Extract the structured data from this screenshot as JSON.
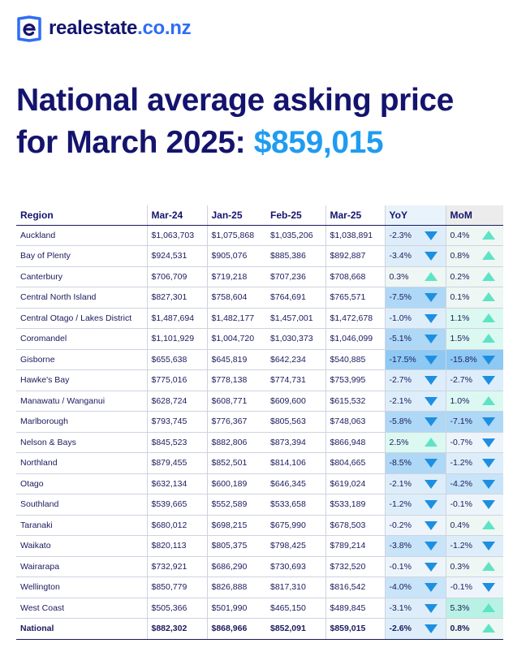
{
  "brand": {
    "name": "realestate",
    "tld": ".co.nz"
  },
  "headline": {
    "line1": "National average asking price",
    "line2_prefix": "for March 2025: ",
    "price": "$859,015"
  },
  "colors": {
    "navy": "#14146e",
    "accent_blue": "#1f9cf0",
    "down_arrow": "#1e8fe0",
    "up_arrow": "#5fe3c5"
  },
  "table": {
    "headers": [
      "Region",
      "Mar-24",
      "Jan-25",
      "Feb-25",
      "Mar-25",
      "YoY",
      "MoM"
    ],
    "rows": [
      {
        "region": "Auckland",
        "mar24": "$1,063,703",
        "jan25": "$1,075,868",
        "feb25": "$1,035,206",
        "mar25": "$1,038,891",
        "yoy": "-2.3%",
        "yoy_dir": "down",
        "mom": "0.4%",
        "mom_dir": "up"
      },
      {
        "region": "Bay of Plenty",
        "mar24": "$924,531",
        "jan25": "$905,076",
        "feb25": "$885,386",
        "mar25": "$892,887",
        "yoy": "-3.4%",
        "yoy_dir": "down",
        "mom": "0.8%",
        "mom_dir": "up"
      },
      {
        "region": "Canterbury",
        "mar24": "$706,709",
        "jan25": "$719,218",
        "feb25": "$707,236",
        "mar25": "$708,668",
        "yoy": "0.3%",
        "yoy_dir": "up",
        "mom": "0.2%",
        "mom_dir": "up"
      },
      {
        "region": "Central North Island",
        "mar24": "$827,301",
        "jan25": "$758,604",
        "feb25": "$764,691",
        "mar25": "$765,571",
        "yoy": "-7.5%",
        "yoy_dir": "down",
        "mom": "0.1%",
        "mom_dir": "up"
      },
      {
        "region": "Central Otago / Lakes District",
        "mar24": "$1,487,694",
        "jan25": "$1,482,177",
        "feb25": "$1,457,001",
        "mar25": "$1,472,678",
        "yoy": "-1.0%",
        "yoy_dir": "down",
        "mom": "1.1%",
        "mom_dir": "up"
      },
      {
        "region": "Coromandel",
        "mar24": "$1,101,929",
        "jan25": "$1,004,720",
        "feb25": "$1,030,373",
        "mar25": "$1,046,099",
        "yoy": "-5.1%",
        "yoy_dir": "down",
        "mom": "1.5%",
        "mom_dir": "up"
      },
      {
        "region": "Gisborne",
        "mar24": "$655,638",
        "jan25": "$645,819",
        "feb25": "$642,234",
        "mar25": "$540,885",
        "yoy": "-17.5%",
        "yoy_dir": "down",
        "mom": "-15.8%",
        "mom_dir": "down"
      },
      {
        "region": "Hawke's Bay",
        "mar24": "$775,016",
        "jan25": "$778,138",
        "feb25": "$774,731",
        "mar25": "$753,995",
        "yoy": "-2.7%",
        "yoy_dir": "down",
        "mom": "-2.7%",
        "mom_dir": "down"
      },
      {
        "region": "Manawatu / Wanganui",
        "mar24": "$628,724",
        "jan25": "$608,771",
        "feb25": "$609,600",
        "mar25": "$615,532",
        "yoy": "-2.1%",
        "yoy_dir": "down",
        "mom": "1.0%",
        "mom_dir": "up"
      },
      {
        "region": "Marlborough",
        "mar24": "$793,745",
        "jan25": "$776,367",
        "feb25": "$805,563",
        "mar25": "$748,063",
        "yoy": "-5.8%",
        "yoy_dir": "down",
        "mom": "-7.1%",
        "mom_dir": "down"
      },
      {
        "region": "Nelson & Bays",
        "mar24": "$845,523",
        "jan25": "$882,806",
        "feb25": "$873,394",
        "mar25": "$866,948",
        "yoy": "2.5%",
        "yoy_dir": "up",
        "mom": "-0.7%",
        "mom_dir": "down"
      },
      {
        "region": "Northland",
        "mar24": "$879,455",
        "jan25": "$852,501",
        "feb25": "$814,106",
        "mar25": "$804,665",
        "yoy": "-8.5%",
        "yoy_dir": "down",
        "mom": "-1.2%",
        "mom_dir": "down"
      },
      {
        "region": "Otago",
        "mar24": "$632,134",
        "jan25": "$600,189",
        "feb25": "$646,345",
        "mar25": "$619,024",
        "yoy": "-2.1%",
        "yoy_dir": "down",
        "mom": "-4.2%",
        "mom_dir": "down"
      },
      {
        "region": "Southland",
        "mar24": "$539,665",
        "jan25": "$552,589",
        "feb25": "$533,658",
        "mar25": "$533,189",
        "yoy": "-1.2%",
        "yoy_dir": "down",
        "mom": "-0.1%",
        "mom_dir": "down"
      },
      {
        "region": "Taranaki",
        "mar24": "$680,012",
        "jan25": "$698,215",
        "feb25": "$675,990",
        "mar25": "$678,503",
        "yoy": "-0.2%",
        "yoy_dir": "down",
        "mom": "0.4%",
        "mom_dir": "up"
      },
      {
        "region": "Waikato",
        "mar24": "$820,113",
        "jan25": "$805,375",
        "feb25": "$798,425",
        "mar25": "$789,214",
        "yoy": "-3.8%",
        "yoy_dir": "down",
        "mom": "-1.2%",
        "mom_dir": "down"
      },
      {
        "region": "Wairarapa",
        "mar24": "$732,921",
        "jan25": "$686,290",
        "feb25": "$730,693",
        "mar25": "$732,520",
        "yoy": "-0.1%",
        "yoy_dir": "down",
        "mom": "0.3%",
        "mom_dir": "up"
      },
      {
        "region": "Wellington",
        "mar24": "$850,779",
        "jan25": "$826,888",
        "feb25": "$817,310",
        "mar25": "$816,542",
        "yoy": "-4.0%",
        "yoy_dir": "down",
        "mom": "-0.1%",
        "mom_dir": "down"
      },
      {
        "region": "West Coast",
        "mar24": "$505,366",
        "jan25": "$501,990",
        "feb25": "$465,150",
        "mar25": "$489,845",
        "yoy": "-3.1%",
        "yoy_dir": "down",
        "mom": "5.3%",
        "mom_dir": "up"
      }
    ],
    "total": {
      "region": "National",
      "mar24": "$882,302",
      "jan25": "$868,966",
      "feb25": "$852,091",
      "mar25": "$859,015",
      "yoy": "-2.6%",
      "yoy_dir": "down",
      "mom": "0.8%",
      "mom_dir": "up"
    }
  }
}
